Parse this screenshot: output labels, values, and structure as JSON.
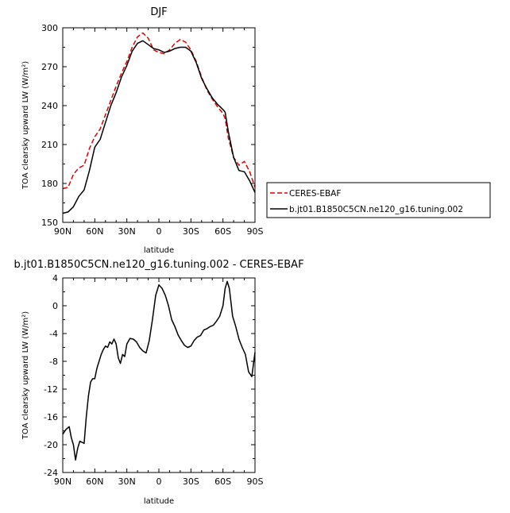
{
  "chart_data": [
    {
      "type": "line",
      "title": "DJF",
      "xlabel": "latitude",
      "ylabel": "TOA clearsky upward LW (W/m²)",
      "xlim": [
        90,
        -90
      ],
      "ylim": [
        150,
        300
      ],
      "x_ticks": [
        90,
        60,
        30,
        0,
        -30,
        -60,
        -90
      ],
      "x_tick_labels": [
        "90N",
        "60N",
        "30N",
        "0",
        "30S",
        "60S",
        "90S"
      ],
      "y_ticks": [
        150,
        180,
        210,
        240,
        270,
        300
      ],
      "y_tick_labels": [
        "150",
        "180",
        "210",
        "240",
        "270",
        "300"
      ],
      "legend_position": "right",
      "series": [
        {
          "name": "CERES-EBAF",
          "color": "#e00000",
          "style": "dashed",
          "x": [
            90,
            85,
            80,
            75,
            70,
            65,
            60,
            55,
            50,
            45,
            40,
            35,
            30,
            25,
            20,
            15,
            10,
            5,
            0,
            -5,
            -10,
            -15,
            -20,
            -25,
            -30,
            -35,
            -40,
            -45,
            -50,
            -55,
            -60,
            -62,
            -65,
            -70,
            -75,
            -80,
            -85,
            -90
          ],
          "values": [
            176,
            177,
            187,
            192,
            194,
            207,
            216,
            222,
            233,
            244,
            255,
            265,
            274,
            285,
            293,
            296,
            292,
            283,
            281,
            280,
            283,
            288,
            291,
            289,
            283,
            274,
            262,
            252,
            245,
            239,
            234,
            230,
            215,
            200,
            194,
            197,
            189,
            177
          ]
        },
        {
          "name": "b.jt01.B1850C5CN.ne120_g16.tuning.002",
          "color": "#000000",
          "style": "solid",
          "x": [
            90,
            85,
            80,
            75,
            70,
            65,
            60,
            55,
            50,
            45,
            40,
            35,
            30,
            25,
            20,
            15,
            10,
            5,
            0,
            -5,
            -10,
            -15,
            -20,
            -25,
            -30,
            -35,
            -40,
            -45,
            -50,
            -55,
            -60,
            -62,
            -65,
            -70,
            -75,
            -80,
            -85,
            -90
          ],
          "values": [
            157,
            158,
            162,
            170,
            175,
            190,
            208,
            214,
            227,
            240,
            250,
            262,
            271,
            282,
            288,
            290,
            287,
            284,
            283,
            281,
            282,
            284,
            285,
            285,
            282,
            273,
            261,
            253,
            246,
            241,
            237,
            235,
            220,
            200,
            190,
            189,
            182,
            173
          ]
        }
      ]
    },
    {
      "type": "line",
      "title": "b.jt01.B1850C5CN.ne120_g16.tuning.002 - CERES-EBAF",
      "xlabel": "latitude",
      "ylabel": "TOA clearsky upward LW (W/m²)",
      "xlim": [
        90,
        -90
      ],
      "ylim": [
        -24,
        4
      ],
      "x_ticks": [
        90,
        60,
        30,
        0,
        -30,
        -60,
        -90
      ],
      "x_tick_labels": [
        "90N",
        "60N",
        "30N",
        "0",
        "30S",
        "60S",
        "90S"
      ],
      "y_ticks": [
        -24,
        -20,
        -16,
        -12,
        -8,
        -4,
        0,
        4
      ],
      "y_tick_labels": [
        "-24",
        "-20",
        "-16",
        "-12",
        "-8",
        "-4",
        "0",
        "4"
      ],
      "series": [
        {
          "color": "#000000",
          "style": "solid",
          "x": [
            90,
            87,
            84,
            82,
            80,
            78,
            76,
            74,
            70,
            68,
            66,
            64,
            62,
            60,
            58,
            56,
            54,
            52,
            50,
            48,
            46,
            44,
            42,
            40,
            38,
            36,
            34,
            32,
            30,
            27,
            24,
            21,
            18,
            15,
            12,
            9,
            6,
            3,
            0,
            -3,
            -6,
            -9,
            -12,
            -15,
            -18,
            -21,
            -24,
            -27,
            -30,
            -33,
            -36,
            -39,
            -42,
            -45,
            -48,
            -51,
            -54,
            -57,
            -60,
            -62,
            -64,
            -66,
            -69,
            -72,
            -75,
            -78,
            -81,
            -84,
            -87,
            -90
          ],
          "values": [
            -18.5,
            -17.8,
            -17.4,
            -19,
            -20,
            -22.2,
            -20.5,
            -19.5,
            -19.8,
            -16,
            -13,
            -11,
            -10.5,
            -10.5,
            -9,
            -8,
            -7,
            -6.3,
            -5.8,
            -6,
            -5.2,
            -5.5,
            -4.8,
            -5.5,
            -7.5,
            -8.3,
            -7,
            -7.3,
            -5.5,
            -4.7,
            -4.8,
            -5.2,
            -6,
            -6.5,
            -6.8,
            -5,
            -2,
            1.5,
            3,
            2.5,
            1.5,
            0,
            -2,
            -3,
            -4.2,
            -5,
            -5.7,
            -6,
            -5.8,
            -5,
            -4.5,
            -4.3,
            -3.5,
            -3.3,
            -3,
            -2.8,
            -2.2,
            -1.5,
            0,
            2.5,
            3.5,
            2.5,
            -1.5,
            -3,
            -4.8,
            -6,
            -7,
            -9.5,
            -10.2,
            -6.7
          ]
        }
      ]
    }
  ]
}
